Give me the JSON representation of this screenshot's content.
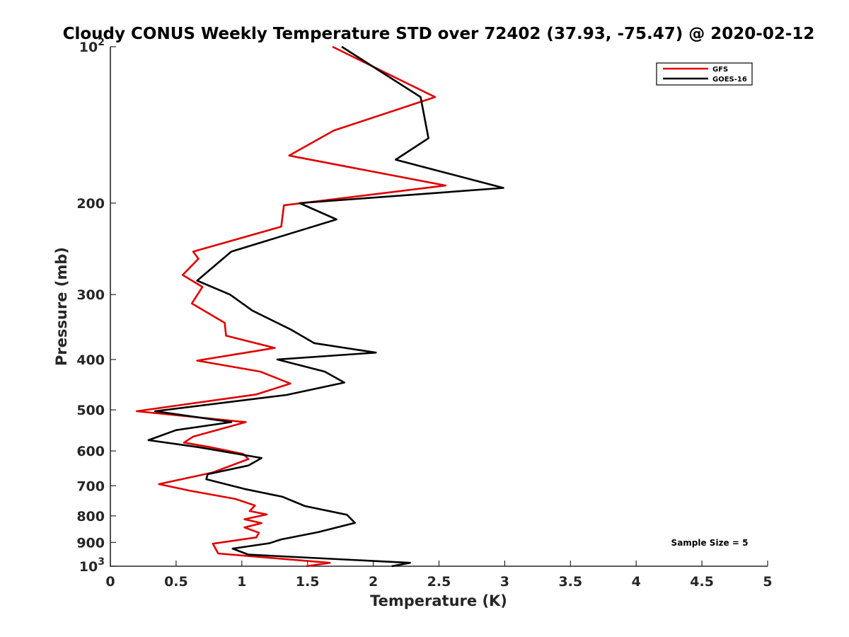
{
  "chart_data": {
    "type": "line",
    "title": "Cloudy CONUS Weekly Temperature STD over 72402 (37.93, -75.47) @ 2020-02-12",
    "xlabel": "Temperature (K)",
    "ylabel": "Pressure (mb)",
    "xlim": [
      0,
      5
    ],
    "ylim": [
      100,
      1000
    ],
    "y_scale": "log",
    "y_reversed": true,
    "x_ticks": [
      0,
      0.5,
      1,
      1.5,
      2,
      2.5,
      3,
      3.5,
      4,
      4.5,
      5
    ],
    "x_tick_labels": [
      "0",
      "0.5",
      "1",
      "1.5",
      "2",
      "2.5",
      "3",
      "3.5",
      "4",
      "4.5",
      "5"
    ],
    "y_ticks": [
      100,
      200,
      300,
      400,
      500,
      600,
      700,
      800,
      900,
      1000
    ],
    "y_tick_labels": [
      {
        "base": "10",
        "exp": "2"
      },
      {
        "base": "200",
        "exp": ""
      },
      {
        "base": "300",
        "exp": ""
      },
      {
        "base": "400",
        "exp": ""
      },
      {
        "base": "500",
        "exp": ""
      },
      {
        "base": "600",
        "exp": ""
      },
      {
        "base": "700",
        "exp": ""
      },
      {
        "base": "800",
        "exp": ""
      },
      {
        "base": "900",
        "exp": ""
      },
      {
        "base": "10",
        "exp": "3"
      }
    ],
    "grid": false,
    "legend": {
      "placement": "top-right"
    },
    "annotation": "Sample Size = 5",
    "series": [
      {
        "name": "GFS",
        "color": "#e00000",
        "points": [
          [
            1.69,
            100
          ],
          [
            2.47,
            125
          ],
          [
            1.7,
            145
          ],
          [
            1.36,
            162
          ],
          [
            2.55,
            185
          ],
          [
            1.32,
            202
          ],
          [
            1.3,
            222
          ],
          [
            0.63,
            248
          ],
          [
            0.67,
            256
          ],
          [
            0.55,
            275
          ],
          [
            0.7,
            290
          ],
          [
            0.62,
            312
          ],
          [
            0.87,
            340
          ],
          [
            0.88,
            360
          ],
          [
            1.25,
            380
          ],
          [
            0.66,
            402
          ],
          [
            1.14,
            422
          ],
          [
            1.37,
            445
          ],
          [
            1.11,
            467
          ],
          [
            0.2,
            503
          ],
          [
            1.03,
            528
          ],
          [
            0.63,
            563
          ],
          [
            0.56,
            578
          ],
          [
            0.76,
            590
          ],
          [
            1.01,
            608
          ],
          [
            1.05,
            622
          ],
          [
            0.78,
            660
          ],
          [
            0.37,
            695
          ],
          [
            0.6,
            715
          ],
          [
            0.95,
            742
          ],
          [
            1.1,
            764
          ],
          [
            1.06,
            783
          ],
          [
            1.19,
            795
          ],
          [
            1.02,
            812
          ],
          [
            1.15,
            826
          ],
          [
            1.02,
            842
          ],
          [
            1.13,
            862
          ],
          [
            1.11,
            880
          ],
          [
            0.78,
            905
          ],
          [
            0.82,
            945
          ],
          [
            1.67,
            985
          ],
          [
            1.49,
            1000
          ]
        ]
      },
      {
        "name": "GOES-16",
        "color": "#000000",
        "points": [
          [
            1.76,
            100
          ],
          [
            2.36,
            125
          ],
          [
            2.42,
            150
          ],
          [
            2.17,
            165
          ],
          [
            2.99,
            187
          ],
          [
            1.44,
            200
          ],
          [
            1.72,
            215
          ],
          [
            0.92,
            248
          ],
          [
            0.77,
            267
          ],
          [
            0.66,
            282
          ],
          [
            0.91,
            300
          ],
          [
            1.08,
            322
          ],
          [
            1.37,
            350
          ],
          [
            1.55,
            372
          ],
          [
            2.02,
            388
          ],
          [
            1.27,
            400
          ],
          [
            1.63,
            422
          ],
          [
            1.78,
            443
          ],
          [
            1.34,
            468
          ],
          [
            0.34,
            503
          ],
          [
            0.92,
            528
          ],
          [
            0.5,
            547
          ],
          [
            0.29,
            572
          ],
          [
            0.67,
            590
          ],
          [
            1.15,
            619
          ],
          [
            1.05,
            640
          ],
          [
            0.74,
            665
          ],
          [
            0.73,
            680
          ],
          [
            1.02,
            710
          ],
          [
            1.31,
            735
          ],
          [
            1.48,
            766
          ],
          [
            1.8,
            796
          ],
          [
            1.86,
            825
          ],
          [
            1.58,
            860
          ],
          [
            1.3,
            888
          ],
          [
            1.21,
            903
          ],
          [
            0.93,
            925
          ],
          [
            1.05,
            950
          ],
          [
            2.28,
            985
          ],
          [
            2.14,
            1000
          ]
        ]
      }
    ]
  }
}
